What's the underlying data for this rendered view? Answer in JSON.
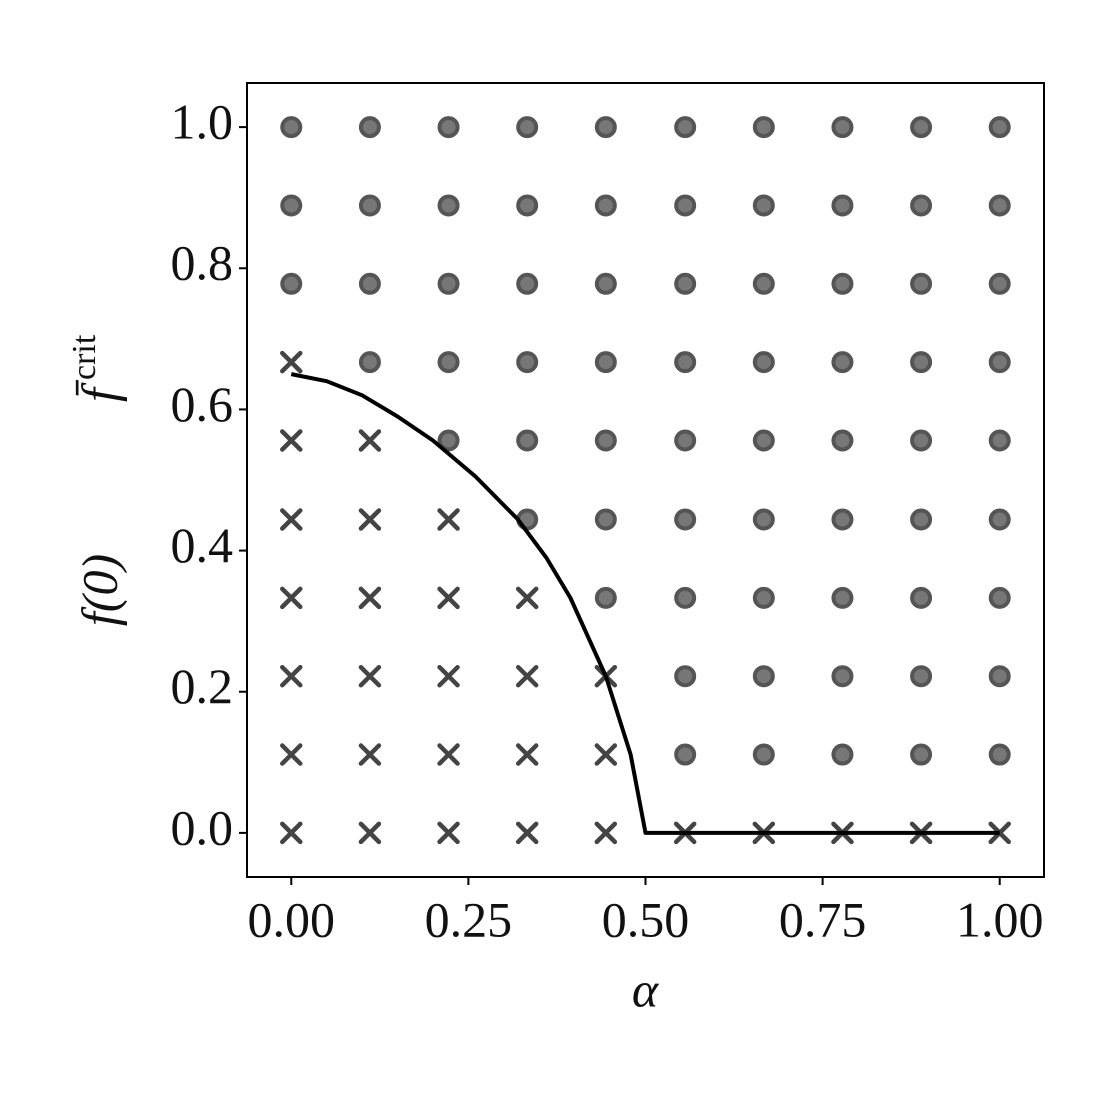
{
  "chart_data": {
    "type": "scatter",
    "xlabel": "α",
    "ylabel": {
      "main": "f(0)",
      "symbol": "f̄",
      "superscript": "crit"
    },
    "xlim": [
      -0.0625,
      1.0625
    ],
    "ylim": [
      -0.0625,
      1.0625
    ],
    "xticks": [
      {
        "value": 0,
        "label": "0.00"
      },
      {
        "value": 0.25,
        "label": "0.25"
      },
      {
        "value": 0.5,
        "label": "0.50"
      },
      {
        "value": 0.75,
        "label": "0.75"
      },
      {
        "value": 1,
        "label": "1.00"
      }
    ],
    "yticks": [
      {
        "value": 0,
        "label": "0.0"
      },
      0.2,
      0.4,
      0.6,
      0.8,
      {
        "value": 1,
        "label": "1.0"
      }
    ],
    "grid": false,
    "series": [
      {
        "type": "scatter",
        "marker": "x",
        "color": "#444444",
        "x": [
          0,
          0.111,
          0.222,
          0.333,
          0.444,
          0.556,
          0.667,
          0.778,
          0.889,
          1.0,
          0,
          0.111,
          0.222,
          0.333,
          0.444,
          0,
          0.111,
          0.222,
          0.333,
          0.444,
          0,
          0.111,
          0.222,
          0.333,
          0,
          0.111,
          0.222,
          0,
          0.111,
          0
        ],
        "values": [
          0,
          0,
          0,
          0,
          0,
          0,
          0,
          0,
          0,
          0,
          0.111,
          0.111,
          0.111,
          0.111,
          0.111,
          0.222,
          0.222,
          0.222,
          0.222,
          0.222,
          0.333,
          0.333,
          0.333,
          0.333,
          0.444,
          0.444,
          0.444,
          0.556,
          0.556,
          0.667
        ]
      },
      {
        "type": "scatter",
        "marker": "o",
        "color": "#777777",
        "x": [
          0.556,
          0.667,
          0.778,
          0.889,
          1.0,
          0.556,
          0.667,
          0.778,
          0.889,
          1.0,
          0.444,
          0.556,
          0.667,
          0.778,
          0.889,
          1.0,
          0.333,
          0.444,
          0.556,
          0.667,
          0.778,
          0.889,
          1.0,
          0.222,
          0.333,
          0.444,
          0.556,
          0.667,
          0.778,
          0.889,
          1.0,
          0.111,
          0.222,
          0.333,
          0.444,
          0.556,
          0.667,
          0.778,
          0.889,
          1.0,
          0,
          0.111,
          0.222,
          0.333,
          0.444,
          0.556,
          0.667,
          0.778,
          0.889,
          1.0,
          0,
          0.111,
          0.222,
          0.333,
          0.444,
          0.556,
          0.667,
          0.778,
          0.889,
          1.0,
          0,
          0.111,
          0.222,
          0.333,
          0.444,
          0.556,
          0.667,
          0.778,
          0.889,
          1.0
        ],
        "values": [
          0.111,
          0.111,
          0.111,
          0.111,
          0.111,
          0.222,
          0.222,
          0.222,
          0.222,
          0.222,
          0.333,
          0.333,
          0.333,
          0.333,
          0.333,
          0.333,
          0.444,
          0.444,
          0.444,
          0.444,
          0.444,
          0.444,
          0.444,
          0.556,
          0.556,
          0.556,
          0.556,
          0.556,
          0.556,
          0.556,
          0.556,
          0.667,
          0.667,
          0.667,
          0.667,
          0.667,
          0.667,
          0.667,
          0.667,
          0.667,
          0.778,
          0.778,
          0.778,
          0.778,
          0.778,
          0.778,
          0.778,
          0.778,
          0.778,
          0.778,
          0.889,
          0.889,
          0.889,
          0.889,
          0.889,
          0.889,
          0.889,
          0.889,
          0.889,
          0.889,
          1.0,
          1.0,
          1.0,
          1.0,
          1.0,
          1.0,
          1.0,
          1.0,
          1.0,
          1.0
        ]
      },
      {
        "type": "line",
        "color": "#000000",
        "x": [
          0,
          0.05,
          0.1,
          0.15,
          0.2,
          0.26,
          0.32,
          0.36,
          0.394,
          0.444,
          0.479,
          0.5,
          1.0
        ],
        "values": [
          0.65,
          0.64,
          0.62,
          0.59,
          0.556,
          0.505,
          0.444,
          0.39,
          0.333,
          0.222,
          0.111,
          0,
          0
        ]
      }
    ]
  }
}
